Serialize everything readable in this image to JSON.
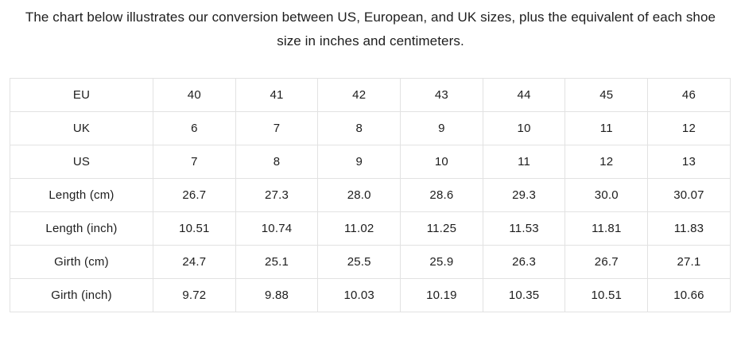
{
  "title": "The chart below illustrates our conversion between US, European, and UK sizes, plus the equivalent of each shoe size in inches and centimeters.",
  "colors": {
    "text": "#1d1d1d",
    "border": "#e2e2e2",
    "background": "#ffffff"
  },
  "table": {
    "rows": [
      {
        "label": "EU",
        "values": [
          "40",
          "41",
          "42",
          "43",
          "44",
          "45",
          "46"
        ]
      },
      {
        "label": "UK",
        "values": [
          "6",
          "7",
          "8",
          "9",
          "10",
          "11",
          "12"
        ]
      },
      {
        "label": "US",
        "values": [
          "7",
          "8",
          "9",
          "10",
          "11",
          "12",
          "13"
        ]
      },
      {
        "label": "Length (cm)",
        "values": [
          "26.7",
          "27.3",
          "28.0",
          "28.6",
          "29.3",
          "30.0",
          "30.07"
        ]
      },
      {
        "label": "Length (inch)",
        "values": [
          "10.51",
          "10.74",
          "11.02",
          "11.25",
          "11.53",
          "11.81",
          "11.83"
        ]
      },
      {
        "label": "Girth (cm)",
        "values": [
          "24.7",
          "25.1",
          "25.5",
          "25.9",
          "26.3",
          "26.7",
          "27.1"
        ]
      },
      {
        "label": "Girth (inch)",
        "values": [
          "9.72",
          "9.88",
          "10.03",
          "10.19",
          "10.35",
          "10.51",
          "10.66"
        ]
      }
    ]
  }
}
